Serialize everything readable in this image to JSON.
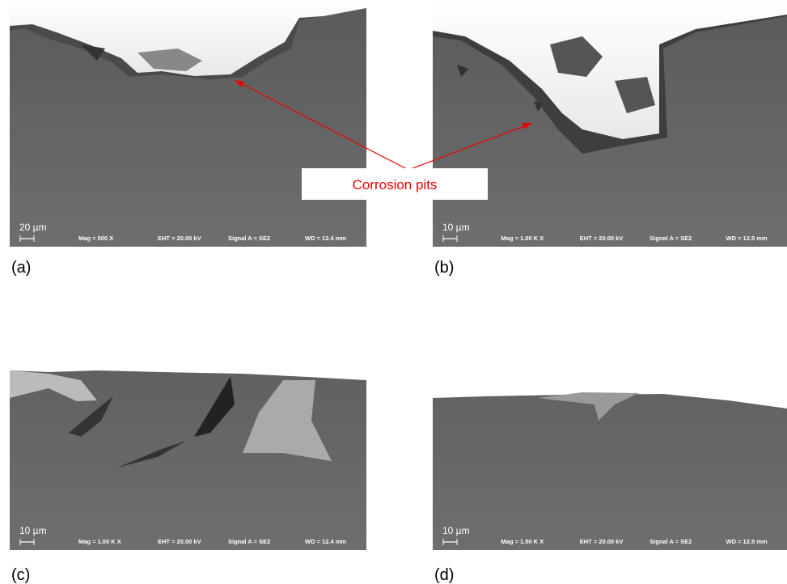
{
  "panels": [
    {
      "label": "(a)",
      "scale": "20 µm",
      "mag": "Mag =   500 X",
      "eht": "EHT = 20.00 kV",
      "signal": "Signal A = SE2",
      "wd": "WD = 12.4 mm"
    },
    {
      "label": "(b)",
      "scale": "10 µm",
      "mag": "Mag =  1.00 K X",
      "eht": "EHT = 20.00 kV",
      "signal": "Signal A = SE2",
      "wd": "WD = 12.5 mm"
    },
    {
      "label": "(c)",
      "scale": "10 µm",
      "mag": "Mag =  1.00 K X",
      "eht": "EHT = 20.00 kV",
      "signal": "Signal A = SE2",
      "wd": "WD = 12.4 mm"
    },
    {
      "label": "(d)",
      "scale": "10 µm",
      "mag": "Mag =  1.50 K X",
      "eht": "EHT = 20.00 kV",
      "signal": "Signal A = SE2",
      "wd": "WD = 12.5 mm"
    }
  ],
  "annotation": "Corrosion pits"
}
